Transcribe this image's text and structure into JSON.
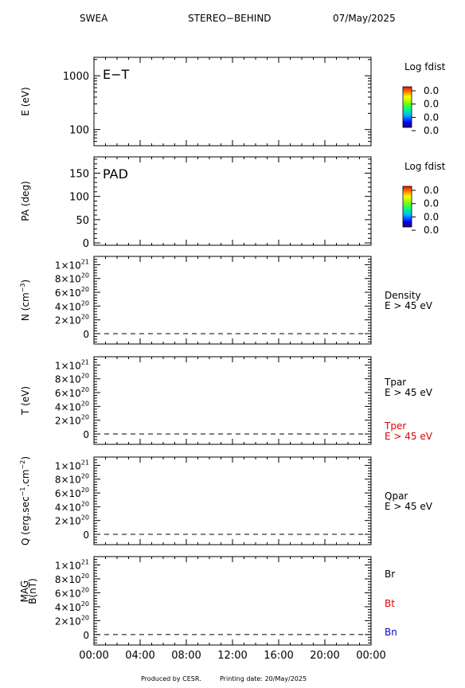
{
  "header": {
    "instrument": "SWEA",
    "spacecraft": "STEREO−BEHIND",
    "date": "07/May/2025"
  },
  "footer": {
    "produced_by": "Produced by CESR.",
    "printing_date": "Printing date: 20/May/2025"
  },
  "time_axis": {
    "ticks": [
      "00:00",
      "04:00",
      "08:00",
      "12:00",
      "16:00",
      "20:00",
      "00:00"
    ]
  },
  "colorbars": [
    {
      "title": "Log fdist",
      "labels": [
        "0.0",
        "0.0",
        "0.0",
        "0.0"
      ]
    },
    {
      "title": "Log fdist",
      "labels": [
        "0.0",
        "0.0",
        "0.0",
        "0.0"
      ]
    }
  ],
  "chart_data": [
    {
      "type": "heatmap",
      "panel_label": "E−T",
      "ylabel": "E (eV)",
      "yscale": "log",
      "ylim": [
        50,
        2200
      ],
      "yticks": [
        {
          "value": 1000,
          "label": "1000"
        },
        {
          "value": 100,
          "label": "100"
        }
      ],
      "values": []
    },
    {
      "type": "heatmap",
      "panel_label": "PAD",
      "ylabel": "PA (deg)",
      "ylim": [
        -5,
        185
      ],
      "yticks": [
        {
          "value": 150,
          "label": "150"
        },
        {
          "value": 100,
          "label": "100"
        },
        {
          "value": 50,
          "label": "50"
        },
        {
          "value": 0,
          "label": "0"
        }
      ],
      "values": []
    },
    {
      "type": "line",
      "ylabel_base": "N (cm",
      "ylabel_sup": "−3",
      "ylabel_end": ")",
      "ylim": [
        -1.5e+20,
        1.12e+21
      ],
      "yticks": [
        {
          "value": 1e+21,
          "mant": "1×10",
          "exp": "21"
        },
        {
          "value": 8e+20,
          "mant": "8×10",
          "exp": "20"
        },
        {
          "value": 6e+20,
          "mant": "6×10",
          "exp": "20"
        },
        {
          "value": 4e+20,
          "mant": "4×10",
          "exp": "20"
        },
        {
          "value": 2e+20,
          "mant": "2×10",
          "exp": "20"
        },
        {
          "value": 0,
          "mant": "0",
          "exp": ""
        }
      ],
      "series": [
        {
          "name": "Density",
          "sub": "E > 45 eV",
          "color": "#000000",
          "values": []
        }
      ],
      "zero_line": true
    },
    {
      "type": "line",
      "ylabel": "T (eV)",
      "ylim": [
        -1.5e+20,
        1.12e+21
      ],
      "yticks": [
        {
          "value": 1e+21,
          "mant": "1×10",
          "exp": "21"
        },
        {
          "value": 8e+20,
          "mant": "8×10",
          "exp": "20"
        },
        {
          "value": 6e+20,
          "mant": "6×10",
          "exp": "20"
        },
        {
          "value": 4e+20,
          "mant": "4×10",
          "exp": "20"
        },
        {
          "value": 2e+20,
          "mant": "2×10",
          "exp": "20"
        },
        {
          "value": 0,
          "mant": "0",
          "exp": ""
        }
      ],
      "series": [
        {
          "name": "Tpar",
          "sub": "E > 45 eV",
          "color": "#000000",
          "values": []
        },
        {
          "name": "Tper",
          "sub": "E > 45 eV",
          "color": "#e00000",
          "values": []
        }
      ],
      "zero_line": true
    },
    {
      "type": "line",
      "ylabel_parts": [
        "Q (erg.sec",
        "−1",
        ".cm",
        "−2",
        ")"
      ],
      "ylim": [
        -1.5e+20,
        1.12e+21
      ],
      "yticks": [
        {
          "value": 1e+21,
          "mant": "1×10",
          "exp": "21"
        },
        {
          "value": 8e+20,
          "mant": "8×10",
          "exp": "20"
        },
        {
          "value": 6e+20,
          "mant": "6×10",
          "exp": "20"
        },
        {
          "value": 4e+20,
          "mant": "4×10",
          "exp": "20"
        },
        {
          "value": 2e+20,
          "mant": "2×10",
          "exp": "20"
        },
        {
          "value": 0,
          "mant": "0",
          "exp": ""
        }
      ],
      "series": [
        {
          "name": "Qpar",
          "sub": "E > 45 eV",
          "color": "#000000",
          "values": []
        }
      ],
      "zero_line": true
    },
    {
      "type": "line",
      "ylabel_lines": [
        "MAG",
        "B(nT)"
      ],
      "ylim": [
        -1.5e+20,
        1.12e+21
      ],
      "yticks": [
        {
          "value": 1e+21,
          "mant": "1×10",
          "exp": "21"
        },
        {
          "value": 8e+20,
          "mant": "8×10",
          "exp": "20"
        },
        {
          "value": 6e+20,
          "mant": "6×10",
          "exp": "20"
        },
        {
          "value": 4e+20,
          "mant": "4×10",
          "exp": "20"
        },
        {
          "value": 2e+20,
          "mant": "2×10",
          "exp": "20"
        },
        {
          "value": 0,
          "mant": "0",
          "exp": ""
        }
      ],
      "series": [
        {
          "name": "Br",
          "sub": "",
          "color": "#000000",
          "values": []
        },
        {
          "name": "Bt",
          "sub": "",
          "color": "#e00000",
          "values": []
        },
        {
          "name": "Bn",
          "sub": "",
          "color": "#0000cc",
          "values": []
        }
      ],
      "zero_line": true
    }
  ]
}
